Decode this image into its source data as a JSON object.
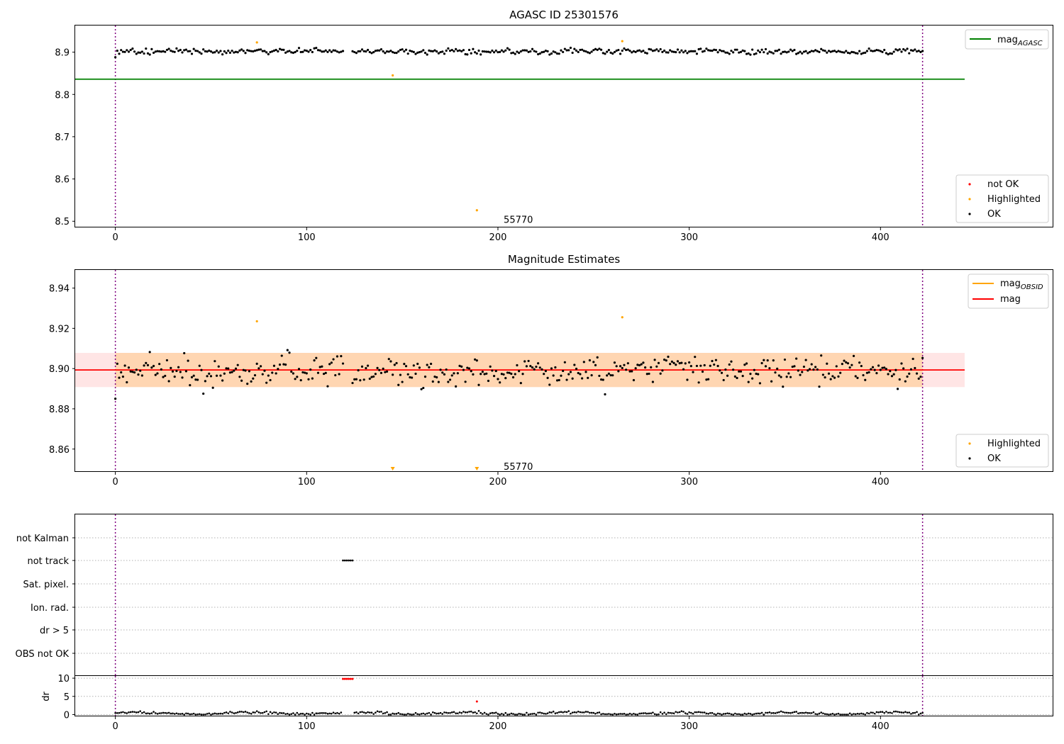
{
  "chart_data": [
    {
      "type": "scatter",
      "title": "AGASC ID 25301576",
      "xlim": [
        -21,
        490
      ],
      "ylim": [
        8.487,
        8.963
      ],
      "xticks": [
        0,
        100,
        200,
        300,
        400
      ],
      "yticks": [
        8.5,
        8.6,
        8.7,
        8.8,
        8.9
      ],
      "ytick_labels": [
        "8.5",
        "8.6",
        "8.7",
        "8.8",
        "8.9"
      ],
      "vlines": [
        0,
        422
      ],
      "hline": {
        "y": 8.836,
        "x_end": 444,
        "color": "#008000",
        "legend": "mag",
        "legend_sub": "AGASC"
      },
      "annotation": {
        "text": "55770",
        "x": 203,
        "y": 8.505
      },
      "ok_series": {
        "name": "OK",
        "color": "#000000",
        "base": 8.902,
        "amp": 0.009,
        "skip": [
          120,
          123
        ],
        "n": 423
      },
      "highlighted": {
        "name": "Highlighted",
        "color": "#ffa500",
        "x": [
          74,
          145,
          189,
          265
        ],
        "y": [
          8.923,
          8.845,
          8.526,
          8.926
        ]
      },
      "not_ok": {
        "name": "not OK",
        "color": "#ff0000"
      },
      "legend_bottom": [
        "not OK",
        "Highlighted",
        "OK"
      ]
    },
    {
      "type": "scatter",
      "title": "Magnitude Estimates",
      "xlim": [
        -21,
        490
      ],
      "ylim": [
        8.849,
        8.949
      ],
      "xticks": [
        0,
        100,
        200,
        300,
        400
      ],
      "yticks": [
        8.86,
        8.88,
        8.9,
        8.92,
        8.94
      ],
      "ytick_labels": [
        "8.86",
        "8.88",
        "8.90",
        "8.92",
        "8.94"
      ],
      "vlines": [
        0,
        422
      ],
      "mag_line": {
        "y": 8.8993,
        "x_end": 444,
        "color": "#ff0000",
        "legend": "mag"
      },
      "mag_band": {
        "y0": 8.8908,
        "y1": 8.9078,
        "x_end": 444
      },
      "mag_obsid": {
        "y0": 8.8908,
        "y1": 8.9078,
        "x0": 0,
        "x1": 422,
        "color": "#ffa500",
        "legend": "mag",
        "legend_sub": "OBSID"
      },
      "annotation": {
        "text": "55770",
        "x": 203,
        "y": 8.8515
      },
      "ok_series": {
        "name": "OK",
        "color": "#000000",
        "base": 8.899,
        "amp": 0.01,
        "skip": [
          120,
          123
        ],
        "n": 423
      },
      "highlighted": {
        "name": "Highlighted",
        "color": "#ffa500",
        "x": [
          74,
          265
        ],
        "y": [
          8.9235,
          8.9255
        ]
      },
      "off_scale_markers": {
        "x": [
          145,
          189
        ],
        "color": "#ffa500"
      },
      "legend_bottom": [
        "Highlighted",
        "OK"
      ]
    },
    {
      "type": "scatter",
      "title": "",
      "xlim": [
        -21,
        490
      ],
      "vlines": [
        0,
        422
      ],
      "flag_rows": [
        "not Kalman",
        "not track",
        "Sat. pixel.",
        "Ion. rad.",
        "dr > 5",
        "OBS not OK"
      ],
      "flag_points": {
        "row": "not track",
        "x": [
          119,
          120,
          121,
          122,
          123,
          124
        ]
      },
      "dr": {
        "ylabel": "dr",
        "yticks": [
          0,
          5,
          10
        ],
        "ytick_labels": [
          "0",
          "5",
          "10"
        ],
        "ylim": [
          -0.3,
          10.6
        ],
        "xticks": [
          0,
          100,
          200,
          300,
          400
        ],
        "red_x": [
          119,
          120,
          121,
          122,
          123,
          124
        ],
        "red_y": 9.8,
        "red_extra": {
          "x": 189,
          "y": 3.6
        },
        "ok_base": 0.35,
        "ok_amp": 0.35
      }
    }
  ]
}
